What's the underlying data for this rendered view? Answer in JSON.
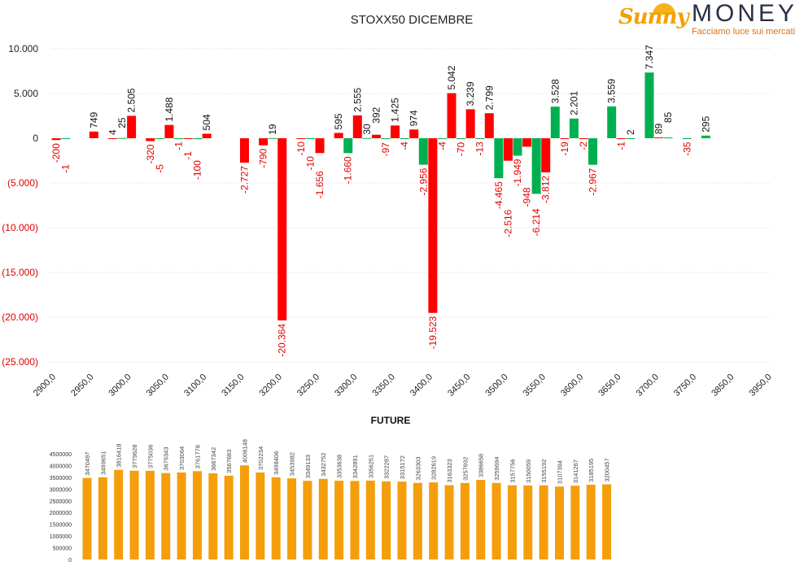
{
  "colors": {
    "red": "#ff0000",
    "green": "#00b050",
    "orange": "#f59e0b",
    "negLabel": "#e00000",
    "grid": "#d9d9d9"
  },
  "logo": {
    "brand_left": "Sunny",
    "brand_right": "MONEY",
    "tagline": "Facciamo luce sui mercati"
  },
  "chart_data": [
    {
      "type": "bar",
      "title": "STOXX50 DICEMBRE",
      "xlabel": "",
      "ylabel": "",
      "ylim": [
        -25000,
        10000
      ],
      "yticks": [
        10000,
        5000,
        0,
        -5000,
        -10000,
        -15000,
        -20000,
        -25000
      ],
      "ytick_labels": [
        "10.000",
        "5.000",
        "0",
        "(5.000)",
        "(10.000)",
        "(15.000)",
        "(20.000)",
        "(25.000)"
      ],
      "grid": true,
      "categories": [
        2900,
        2925,
        2950,
        2975,
        3000,
        3025,
        3050,
        3075,
        3100,
        3125,
        3150,
        3175,
        3200,
        3225,
        3250,
        3275,
        3300,
        3325,
        3350,
        3375,
        3400,
        3425,
        3450,
        3475,
        3500,
        3525,
        3550,
        3575,
        3600,
        3625,
        3650,
        3675,
        3700,
        3725,
        3750,
        3800,
        3850,
        3900,
        3950
      ],
      "xtick_labels": [
        "2900,0",
        "2950,0",
        "3000,0",
        "3050,0",
        "3100,0",
        "3150,0",
        "3200,0",
        "3250,0",
        "3300,0",
        "3350,0",
        "3400,0",
        "3450,0",
        "3500,0",
        "3550,0",
        "3600,0",
        "3650,0",
        "3700,0",
        "3750,0",
        "3850,0",
        "3950,0"
      ],
      "series": [
        {
          "name": "green",
          "values": [
            null,
            -1,
            null,
            null,
            25,
            null,
            -5,
            -1,
            -100,
            null,
            null,
            null,
            19,
            null,
            -10,
            null,
            -1660,
            30,
            -97,
            -4,
            -2956,
            -4,
            -70,
            -13,
            -4465,
            -1949,
            -6214,
            3528,
            2201,
            -2967,
            3559,
            2,
            7347,
            85,
            -35,
            295,
            null,
            null,
            null
          ]
        },
        {
          "name": "red",
          "values": [
            -200,
            null,
            749,
            4,
            2505,
            -320,
            1488,
            -1,
            504,
            null,
            -2727,
            -790,
            -20364,
            -10,
            -1656,
            595,
            2555,
            392,
            1425,
            974,
            -19523,
            5042,
            3239,
            2799,
            -2516,
            -948,
            -3812,
            -19,
            -2,
            null,
            -1,
            null,
            89,
            null,
            null,
            null,
            null,
            null,
            null
          ]
        }
      ],
      "label_formats": {
        "2505": "2.505",
        "1488": "1.488",
        "-2727": "-2.727",
        "-20364": "-20.364",
        "-1656": "-1.656",
        "-1660": "-1.660",
        "2555": "2.555",
        "1425": "1.425",
        "-2956": "-2.956",
        "-19523": "-19.523",
        "5042": "5.042",
        "3239": "3.239",
        "2799": "2.799",
        "-4465": "-4.465",
        "-2516": "-2.516",
        "-1949": "-1.949",
        "-6214": "-6.214",
        "-3812": "-3.812",
        "3528": "3.528",
        "2201": "2.201",
        "-2967": "-2.967",
        "3559": "3.559",
        "7347": "7.347"
      }
    },
    {
      "type": "bar",
      "title": "FUTURE",
      "ylim": [
        0,
        4500000
      ],
      "yticks": [
        0,
        500000,
        1000000,
        1500000,
        2000000,
        2500000,
        3000000,
        3500000,
        4000000,
        4500000
      ],
      "values": [
        3470497,
        3499651,
        3816418,
        3779628,
        3775036,
        3679343,
        3703064,
        3761778,
        3667342,
        3567683,
        4006148,
        3702234,
        3498406,
        3453982,
        3349133,
        3432752,
        3353638,
        3342891,
        3356251,
        3322287,
        3315172,
        3263303,
        3282619,
        3163323,
        3257692,
        3386658,
        3259694,
        3157756,
        3150059,
        3155192,
        3107394,
        3141267,
        3185195,
        3200457
      ]
    }
  ]
}
